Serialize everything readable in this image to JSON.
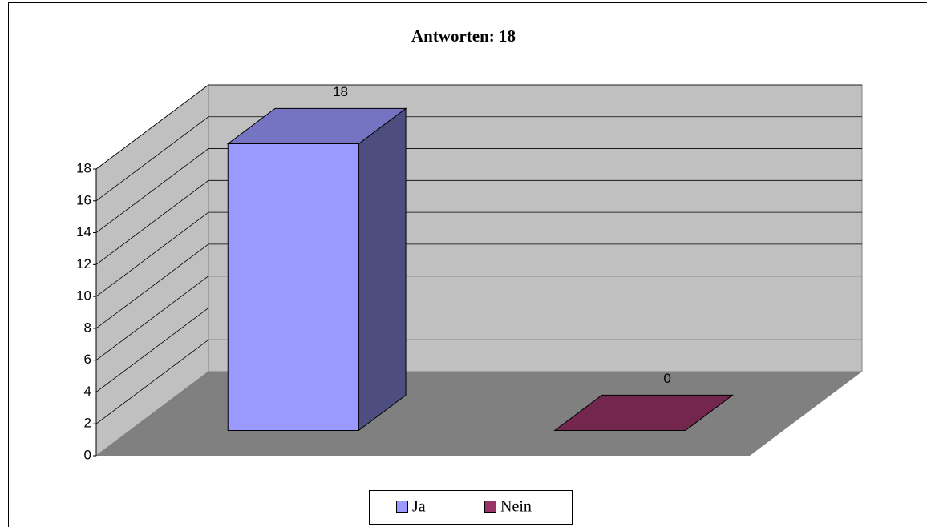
{
  "chart_data": {
    "type": "bar3d",
    "title": "Antworten: 18",
    "categories": [
      null
    ],
    "series": [
      {
        "name": "Ja",
        "color": "#9999ff",
        "values": [
          18
        ]
      },
      {
        "name": "Nein",
        "color": "#993366",
        "values": [
          0
        ]
      }
    ],
    "ylim": [
      0,
      18
    ],
    "yticks": [
      0,
      2,
      4,
      6,
      8,
      10,
      12,
      14,
      16,
      18
    ],
    "grid": true,
    "legend": "bottom"
  }
}
